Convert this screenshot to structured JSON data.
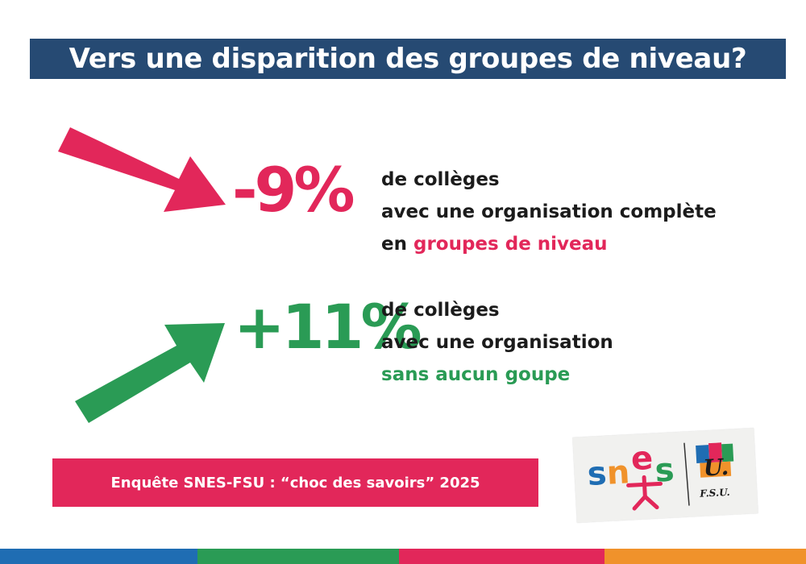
{
  "title": "Vers une disparition des groupes de niveau?",
  "stat_down": {
    "value": "-9%",
    "line1": "de collèges",
    "line2": "avec une organisation complète",
    "line3_prefix": "en ",
    "line3_highlight": "groupes de niveau"
  },
  "stat_up": {
    "value": "+11%",
    "line1": "de collèges",
    "line2": "avec une organisation",
    "line3_highlight": "sans aucun goupe"
  },
  "source": "Enquête SNES-FSU : “choc des savoirs” 2025",
  "logo": {
    "snes_s1": "s",
    "snes_n": "n",
    "snes_e": "e",
    "snes_s2": "s",
    "fsu_u": "U.",
    "fsu": "F.S.U."
  },
  "colors": {
    "navy": "#264a73",
    "red": "#e2275a",
    "green": "#2a9b55",
    "blue": "#1f6db3",
    "orange": "#f0922b"
  },
  "icons": {
    "down_arrow": "arrow-down-right-icon",
    "up_arrow": "arrow-up-right-icon"
  }
}
